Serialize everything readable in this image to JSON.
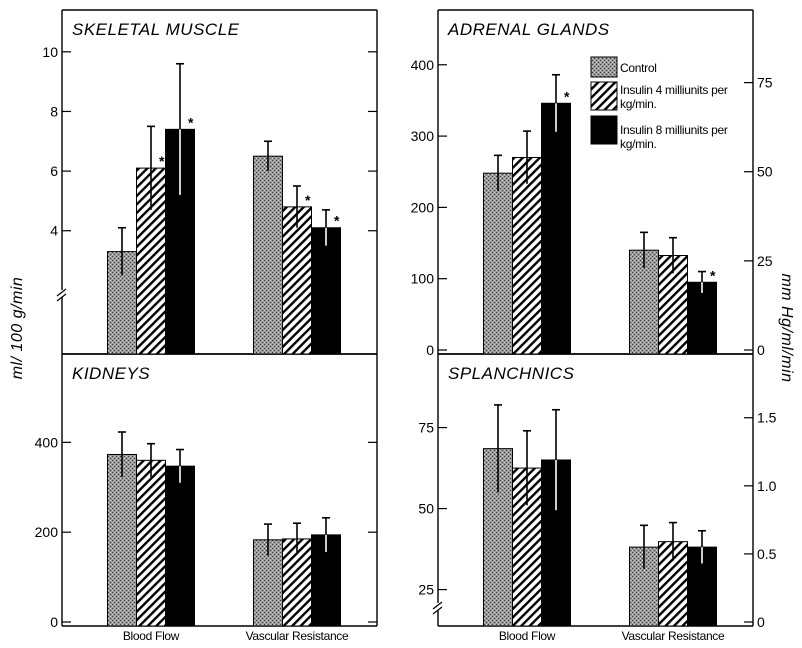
{
  "figure": {
    "ylabel_left": "ml/ 100 g/min",
    "ylabel_right": "mm Hg/ml/min",
    "legend": [
      {
        "label_lines": [
          "Control"
        ],
        "pattern": "stipple"
      },
      {
        "label_lines": [
          "Insulin 4 milliunits per",
          "kg/min."
        ],
        "pattern": "hatch"
      },
      {
        "label_lines": [
          "Insulin 8 milliunits per",
          "kg/min."
        ],
        "pattern": "solid"
      }
    ],
    "categories": [
      "Blood Flow",
      "Vascular Resistance"
    ]
  },
  "chart_data": [
    {
      "type": "bar",
      "title": "SKELETAL MUSCLE",
      "categories": [
        "Blood Flow",
        "Vascular Resistance"
      ],
      "y_left": {
        "ylim": [
          0,
          11
        ],
        "axis_break": true,
        "ticks": [
          {
            "v": 4,
            "label": "4"
          },
          {
            "v": 6,
            "label": "6"
          },
          {
            "v": 8,
            "label": "8"
          },
          {
            "v": 10,
            "label": "10"
          }
        ]
      },
      "series": [
        {
          "name": "Control",
          "values": [
            3.3,
            6.5
          ],
          "errors": [
            0.8,
            0.5
          ],
          "significant": [
            false,
            false
          ]
        },
        {
          "name": "Insulin 4 milliunits per kg/min.",
          "values": [
            6.1,
            4.8
          ],
          "errors": [
            1.4,
            0.7
          ],
          "significant": [
            true,
            true
          ]
        },
        {
          "name": "Insulin 8 milliunits per kg/min.",
          "values": [
            7.4,
            4.1
          ],
          "errors": [
            2.2,
            0.6
          ],
          "significant": [
            true,
            true
          ]
        }
      ]
    },
    {
      "type": "bar",
      "title": "ADRENAL GLANDS",
      "categories": [
        "Blood Flow",
        "Vascular Resistance"
      ],
      "y_left": {
        "ylim": [
          0,
          460
        ],
        "axis_break": false,
        "ticks": [
          {
            "v": 0,
            "label": "0"
          },
          {
            "v": 100,
            "label": "100"
          },
          {
            "v": 200,
            "label": "200"
          },
          {
            "v": 300,
            "label": "300"
          },
          {
            "v": 400,
            "label": "400"
          }
        ]
      },
      "y_right": {
        "ylim": [
          0,
          92
        ],
        "ticks": [
          {
            "v": 0,
            "label": "0"
          },
          {
            "v": 25,
            "label": "25"
          },
          {
            "v": 50,
            "label": "50"
          },
          {
            "v": 75,
            "label": "75"
          }
        ]
      },
      "series": [
        {
          "name": "Control",
          "values": [
            248,
            28
          ],
          "errors": [
            25,
            5
          ],
          "significant": [
            false,
            false
          ],
          "axis": [
            "left",
            "right"
          ]
        },
        {
          "name": "Insulin 4 milliunits per kg/min.",
          "values": [
            270,
            26.5
          ],
          "errors": [
            37,
            5
          ],
          "significant": [
            false,
            false
          ],
          "axis": [
            "left",
            "right"
          ]
        },
        {
          "name": "Insulin 8 milliunits per kg/min.",
          "values": [
            346,
            19
          ],
          "errors": [
            40,
            3
          ],
          "significant": [
            true,
            true
          ],
          "axis": [
            "left",
            "right"
          ]
        }
      ]
    },
    {
      "type": "bar",
      "title": "KIDNEYS",
      "categories": [
        "Blood Flow",
        "Vascular Resistance"
      ],
      "y_left": {
        "ylim": [
          0,
          570
        ],
        "axis_break": false,
        "ticks": [
          {
            "v": 0,
            "label": "0"
          },
          {
            "v": 200,
            "label": "200"
          },
          {
            "v": 400,
            "label": "400"
          }
        ]
      },
      "series": [
        {
          "name": "Control",
          "values": [
            373,
            183
          ],
          "errors": [
            50,
            35
          ],
          "significant": [
            false,
            false
          ]
        },
        {
          "name": "Insulin 4 milliunits per kg/min.",
          "values": [
            360,
            185
          ],
          "errors": [
            37,
            35
          ],
          "significant": [
            false,
            false
          ]
        },
        {
          "name": "Insulin 8 milliunits per kg/min.",
          "values": [
            347,
            194
          ],
          "errors": [
            37,
            38
          ],
          "significant": [
            false,
            false
          ]
        }
      ]
    },
    {
      "type": "bar",
      "title": "SPLANCHNICS",
      "categories": [
        "Blood Flow",
        "Vascular Resistance"
      ],
      "y_left": {
        "ylim": [
          15,
          94
        ],
        "axis_break": true,
        "ticks": [
          {
            "v": 25,
            "label": "25"
          },
          {
            "v": 50,
            "label": "50"
          },
          {
            "v": 75,
            "label": "75"
          }
        ]
      },
      "y_right": {
        "ylim": [
          0,
          1.88
        ],
        "ticks": [
          {
            "v": 0,
            "label": "0"
          },
          {
            "v": 0.5,
            "label": "0.5"
          },
          {
            "v": 1.0,
            "label": "1.0"
          },
          {
            "v": 1.5,
            "label": "1.5"
          }
        ]
      },
      "series": [
        {
          "name": "Control",
          "values": [
            68.5,
            0.55
          ],
          "errors": [
            13.5,
            0.16
          ],
          "significant": [
            false,
            false
          ],
          "axis": [
            "left",
            "right"
          ]
        },
        {
          "name": "Insulin 4 milliunits per kg/min.",
          "values": [
            62.5,
            0.59
          ],
          "errors": [
            11.5,
            0.14
          ],
          "significant": [
            false,
            false
          ],
          "axis": [
            "left",
            "right"
          ]
        },
        {
          "name": "Insulin 8 milliunits per kg/min.",
          "values": [
            65,
            0.55
          ],
          "errors": [
            15.5,
            0.12
          ],
          "significant": [
            false,
            false
          ],
          "axis": [
            "left",
            "right"
          ]
        }
      ]
    }
  ]
}
